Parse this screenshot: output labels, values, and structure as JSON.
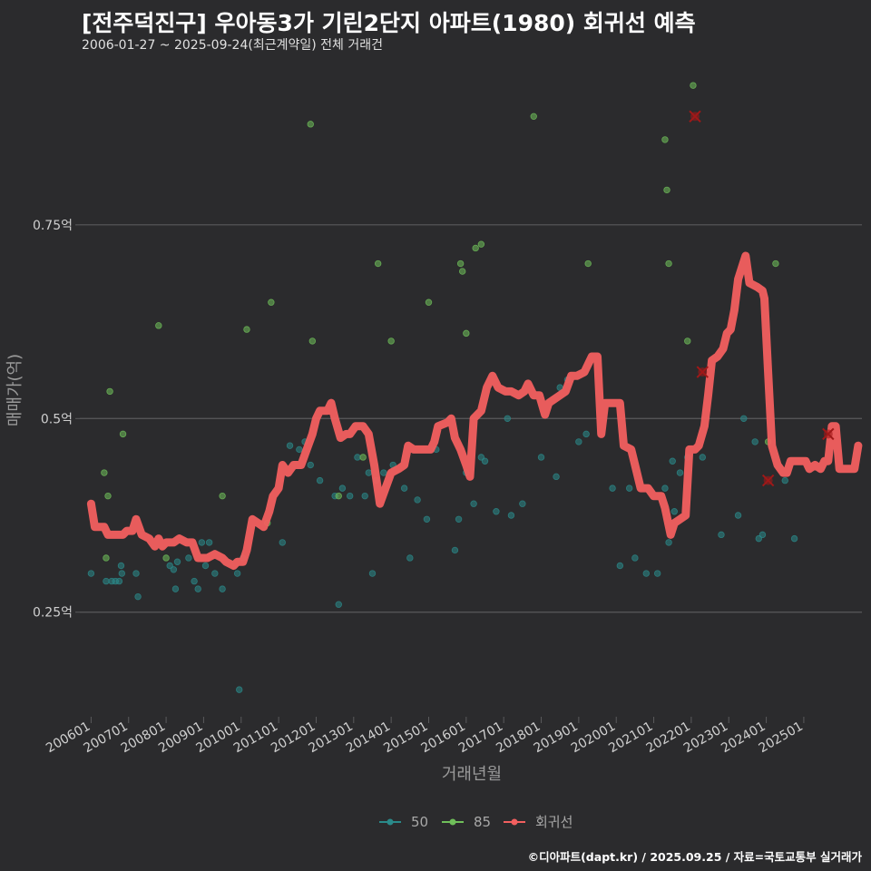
{
  "header": {
    "title": "[전주덕진구] 우아동3가 기린2단지 아파트(1980) 회귀선 예측",
    "subtitle": "2006-01-27 ~ 2025-09-24(최근계약일) 전체 거래건"
  },
  "caption": "©디아파트(dapt.kr) / 2025.09.25 / 자료=국토교통부 실거래가",
  "colors": {
    "background": "#2b2b2d",
    "grid": "#5a5a5c",
    "series_50": "#2a8a8a",
    "series_85": "#6fbf5a",
    "regression": "#f25f5f",
    "marker_x": "#a01818"
  },
  "chart_data": {
    "type": "scatter",
    "xlabel": "거래년월",
    "ylabel": "매매가(억)",
    "x_range": [
      2005.7,
      2026.55
    ],
    "ylim": [
      0.115,
      0.97
    ],
    "grid": "horizontal",
    "legend_position": "bottom",
    "y_ticks": [
      {
        "value": 0.25,
        "label": "0.25억"
      },
      {
        "value": 0.5,
        "label": "0.5억"
      },
      {
        "value": 0.75,
        "label": "0.75억"
      }
    ],
    "x_ticks": [
      {
        "value": 2006,
        "label": "200601"
      },
      {
        "value": 2007,
        "label": "200701"
      },
      {
        "value": 2008,
        "label": "200801"
      },
      {
        "value": 2009,
        "label": "200901"
      },
      {
        "value": 2010,
        "label": "201001"
      },
      {
        "value": 2011,
        "label": "201101"
      },
      {
        "value": 2012,
        "label": "201201"
      },
      {
        "value": 2013,
        "label": "201301"
      },
      {
        "value": 2014,
        "label": "201401"
      },
      {
        "value": 2015,
        "label": "201501"
      },
      {
        "value": 2016,
        "label": "201601"
      },
      {
        "value": 2017,
        "label": "201701"
      },
      {
        "value": 2018,
        "label": "201801"
      },
      {
        "value": 2019,
        "label": "201901"
      },
      {
        "value": 2020,
        "label": "202001"
      },
      {
        "value": 2021,
        "label": "202101"
      },
      {
        "value": 2022,
        "label": "202201"
      },
      {
        "value": 2023,
        "label": "202301"
      },
      {
        "value": 2024,
        "label": "202401"
      },
      {
        "value": 2025,
        "label": "202501"
      }
    ],
    "legend": [
      "50",
      "85",
      "회귀선"
    ],
    "series": [
      {
        "name": "50",
        "points": [
          [
            2006.0,
            0.3
          ],
          [
            2006.4,
            0.29
          ],
          [
            2006.55,
            0.29
          ],
          [
            2006.65,
            0.29
          ],
          [
            2006.75,
            0.29
          ],
          [
            2006.8,
            0.31
          ],
          [
            2006.82,
            0.3
          ],
          [
            2007.2,
            0.3
          ],
          [
            2007.25,
            0.27
          ],
          [
            2008.1,
            0.31
          ],
          [
            2008.2,
            0.305
          ],
          [
            2008.25,
            0.28
          ],
          [
            2008.3,
            0.315
          ],
          [
            2008.6,
            0.32
          ],
          [
            2008.75,
            0.29
          ],
          [
            2008.85,
            0.28
          ],
          [
            2008.95,
            0.34
          ],
          [
            2009.05,
            0.31
          ],
          [
            2009.15,
            0.34
          ],
          [
            2009.3,
            0.3
          ],
          [
            2009.5,
            0.28
          ],
          [
            2009.9,
            0.3
          ],
          [
            2010.05,
            0.32
          ],
          [
            2009.95,
            0.15
          ],
          [
            2011.1,
            0.34
          ],
          [
            2011.3,
            0.465
          ],
          [
            2011.55,
            0.46
          ],
          [
            2011.7,
            0.47
          ],
          [
            2011.85,
            0.44
          ],
          [
            2012.1,
            0.42
          ],
          [
            2012.5,
            0.4
          ],
          [
            2012.6,
            0.26
          ],
          [
            2012.7,
            0.41
          ],
          [
            2012.9,
            0.4
          ],
          [
            2013.1,
            0.45
          ],
          [
            2013.3,
            0.4
          ],
          [
            2013.4,
            0.43
          ],
          [
            2013.5,
            0.3
          ],
          [
            2013.6,
            0.42
          ],
          [
            2013.8,
            0.43
          ],
          [
            2014.05,
            0.44
          ],
          [
            2014.35,
            0.41
          ],
          [
            2014.5,
            0.32
          ],
          [
            2014.7,
            0.395
          ],
          [
            2014.95,
            0.37
          ],
          [
            2015.2,
            0.46
          ],
          [
            2015.7,
            0.33
          ],
          [
            2015.8,
            0.37
          ],
          [
            2016.0,
            0.43
          ],
          [
            2016.2,
            0.39
          ],
          [
            2016.4,
            0.45
          ],
          [
            2016.5,
            0.445
          ],
          [
            2016.8,
            0.38
          ],
          [
            2017.1,
            0.5
          ],
          [
            2017.2,
            0.375
          ],
          [
            2017.5,
            0.39
          ],
          [
            2018.0,
            0.45
          ],
          [
            2018.4,
            0.425
          ],
          [
            2018.5,
            0.54
          ],
          [
            2018.7,
            0.55
          ],
          [
            2019.0,
            0.47
          ],
          [
            2019.2,
            0.48
          ],
          [
            2019.9,
            0.41
          ],
          [
            2020.1,
            0.31
          ],
          [
            2020.35,
            0.41
          ],
          [
            2020.5,
            0.32
          ],
          [
            2020.8,
            0.3
          ],
          [
            2021.1,
            0.3
          ],
          [
            2021.3,
            0.41
          ],
          [
            2021.4,
            0.34
          ],
          [
            2021.5,
            0.445
          ],
          [
            2021.55,
            0.38
          ],
          [
            2021.7,
            0.43
          ],
          [
            2021.9,
            0.45
          ],
          [
            2022.3,
            0.45
          ],
          [
            2022.8,
            0.35
          ],
          [
            2023.25,
            0.375
          ],
          [
            2023.4,
            0.5
          ],
          [
            2023.7,
            0.47
          ],
          [
            2023.8,
            0.345
          ],
          [
            2023.9,
            0.35
          ],
          [
            2024.5,
            0.42
          ],
          [
            2024.75,
            0.345
          ]
        ]
      },
      {
        "name": "85",
        "points": [
          [
            2006.35,
            0.43
          ],
          [
            2006.4,
            0.32
          ],
          [
            2006.45,
            0.4
          ],
          [
            2006.5,
            0.535
          ],
          [
            2006.85,
            0.48
          ],
          [
            2007.8,
            0.62
          ],
          [
            2008.0,
            0.32
          ],
          [
            2009.5,
            0.4
          ],
          [
            2010.15,
            0.615
          ],
          [
            2010.7,
            0.365
          ],
          [
            2010.8,
            0.65
          ],
          [
            2011.85,
            0.88
          ],
          [
            2011.9,
            0.6
          ],
          [
            2012.6,
            0.4
          ],
          [
            2013.25,
            0.45
          ],
          [
            2013.65,
            0.7
          ],
          [
            2014.0,
            0.6
          ],
          [
            2015.0,
            0.65
          ],
          [
            2015.85,
            0.7
          ],
          [
            2015.9,
            0.69
          ],
          [
            2016.0,
            0.61
          ],
          [
            2016.25,
            0.72
          ],
          [
            2016.4,
            0.725
          ],
          [
            2017.8,
            0.89
          ],
          [
            2019.25,
            0.7
          ],
          [
            2021.3,
            0.86
          ],
          [
            2021.35,
            0.795
          ],
          [
            2021.4,
            0.7
          ],
          [
            2021.9,
            0.6
          ],
          [
            2022.05,
            0.93
          ],
          [
            2024.25,
            0.7
          ],
          [
            2024.05,
            0.47
          ]
        ]
      }
    ],
    "regression_line": [
      [
        2006.0,
        0.39
      ],
      [
        2006.1,
        0.36
      ],
      [
        2006.35,
        0.36
      ],
      [
        2006.45,
        0.35
      ],
      [
        2006.85,
        0.35
      ],
      [
        2006.95,
        0.355
      ],
      [
        2007.1,
        0.355
      ],
      [
        2007.2,
        0.37
      ],
      [
        2007.35,
        0.35
      ],
      [
        2007.55,
        0.345
      ],
      [
        2007.7,
        0.335
      ],
      [
        2007.8,
        0.345
      ],
      [
        2007.9,
        0.335
      ],
      [
        2008.0,
        0.34
      ],
      [
        2008.2,
        0.34
      ],
      [
        2008.35,
        0.345
      ],
      [
        2008.55,
        0.34
      ],
      [
        2008.7,
        0.34
      ],
      [
        2008.85,
        0.32
      ],
      [
        2009.1,
        0.32
      ],
      [
        2009.3,
        0.325
      ],
      [
        2009.5,
        0.32
      ],
      [
        2009.6,
        0.315
      ],
      [
        2009.8,
        0.31
      ],
      [
        2009.9,
        0.315
      ],
      [
        2010.05,
        0.315
      ],
      [
        2010.15,
        0.33
      ],
      [
        2010.3,
        0.37
      ],
      [
        2010.45,
        0.365
      ],
      [
        2010.6,
        0.36
      ],
      [
        2010.75,
        0.38
      ],
      [
        2010.85,
        0.4
      ],
      [
        2011.0,
        0.41
      ],
      [
        2011.1,
        0.44
      ],
      [
        2011.25,
        0.43
      ],
      [
        2011.4,
        0.44
      ],
      [
        2011.6,
        0.44
      ],
      [
        2011.75,
        0.46
      ],
      [
        2011.9,
        0.48
      ],
      [
        2012.0,
        0.5
      ],
      [
        2012.1,
        0.51
      ],
      [
        2012.3,
        0.51
      ],
      [
        2012.4,
        0.52
      ],
      [
        2012.5,
        0.5
      ],
      [
        2012.65,
        0.475
      ],
      [
        2012.8,
        0.48
      ],
      [
        2012.9,
        0.48
      ],
      [
        2013.05,
        0.49
      ],
      [
        2013.25,
        0.49
      ],
      [
        2013.4,
        0.48
      ],
      [
        2013.55,
        0.44
      ],
      [
        2013.7,
        0.39
      ],
      [
        2013.85,
        0.41
      ],
      [
        2014.0,
        0.43
      ],
      [
        2014.2,
        0.435
      ],
      [
        2014.35,
        0.44
      ],
      [
        2014.45,
        0.465
      ],
      [
        2014.6,
        0.46
      ],
      [
        2014.9,
        0.46
      ],
      [
        2015.05,
        0.46
      ],
      [
        2015.15,
        0.47
      ],
      [
        2015.25,
        0.49
      ],
      [
        2015.5,
        0.495
      ],
      [
        2015.6,
        0.5
      ],
      [
        2015.7,
        0.475
      ],
      [
        2015.85,
        0.46
      ],
      [
        2016.0,
        0.44
      ],
      [
        2016.1,
        0.425
      ],
      [
        2016.2,
        0.5
      ],
      [
        2016.4,
        0.51
      ],
      [
        2016.55,
        0.54
      ],
      [
        2016.7,
        0.555
      ],
      [
        2016.85,
        0.54
      ],
      [
        2017.05,
        0.535
      ],
      [
        2017.2,
        0.535
      ],
      [
        2017.4,
        0.53
      ],
      [
        2017.55,
        0.535
      ],
      [
        2017.65,
        0.545
      ],
      [
        2017.8,
        0.53
      ],
      [
        2017.95,
        0.53
      ],
      [
        2018.1,
        0.505
      ],
      [
        2018.2,
        0.52
      ],
      [
        2018.35,
        0.525
      ],
      [
        2018.5,
        0.53
      ],
      [
        2018.65,
        0.535
      ],
      [
        2018.8,
        0.555
      ],
      [
        2018.95,
        0.555
      ],
      [
        2019.15,
        0.56
      ],
      [
        2019.35,
        0.58
      ],
      [
        2019.5,
        0.58
      ],
      [
        2019.6,
        0.48
      ],
      [
        2019.7,
        0.52
      ],
      [
        2019.95,
        0.52
      ],
      [
        2020.1,
        0.52
      ],
      [
        2020.2,
        0.465
      ],
      [
        2020.4,
        0.46
      ],
      [
        2020.5,
        0.44
      ],
      [
        2020.65,
        0.41
      ],
      [
        2020.85,
        0.41
      ],
      [
        2021.0,
        0.4
      ],
      [
        2021.2,
        0.4
      ],
      [
        2021.3,
        0.385
      ],
      [
        2021.45,
        0.35
      ],
      [
        2021.55,
        0.365
      ],
      [
        2021.7,
        0.37
      ],
      [
        2021.85,
        0.375
      ],
      [
        2021.95,
        0.46
      ],
      [
        2022.1,
        0.46
      ],
      [
        2022.2,
        0.465
      ],
      [
        2022.35,
        0.49
      ],
      [
        2022.45,
        0.53
      ],
      [
        2022.55,
        0.575
      ],
      [
        2022.7,
        0.58
      ],
      [
        2022.85,
        0.59
      ],
      [
        2022.95,
        0.61
      ],
      [
        2023.05,
        0.615
      ],
      [
        2023.15,
        0.64
      ],
      [
        2023.25,
        0.68
      ],
      [
        2023.35,
        0.695
      ],
      [
        2023.45,
        0.71
      ],
      [
        2023.55,
        0.675
      ],
      [
        2023.75,
        0.67
      ],
      [
        2023.9,
        0.665
      ],
      [
        2023.95,
        0.655
      ],
      [
        2024.05,
        0.56
      ],
      [
        2024.15,
        0.465
      ],
      [
        2024.3,
        0.44
      ],
      [
        2024.45,
        0.43
      ],
      [
        2024.55,
        0.43
      ],
      [
        2024.65,
        0.445
      ],
      [
        2024.8,
        0.445
      ],
      [
        2025.05,
        0.445
      ],
      [
        2025.15,
        0.435
      ],
      [
        2025.3,
        0.44
      ],
      [
        2025.45,
        0.435
      ],
      [
        2025.55,
        0.445
      ],
      [
        2025.65,
        0.445
      ],
      [
        2025.75,
        0.49
      ],
      [
        2025.85,
        0.49
      ],
      [
        2025.95,
        0.435
      ],
      [
        2026.1,
        0.435
      ],
      [
        2026.25,
        0.435
      ],
      [
        2026.35,
        0.435
      ],
      [
        2026.45,
        0.465
      ]
    ],
    "x_markers": [
      [
        2022.1,
        0.89
      ],
      [
        2022.3,
        0.56
      ],
      [
        2024.05,
        0.42
      ],
      [
        2025.65,
        0.48
      ]
    ]
  }
}
